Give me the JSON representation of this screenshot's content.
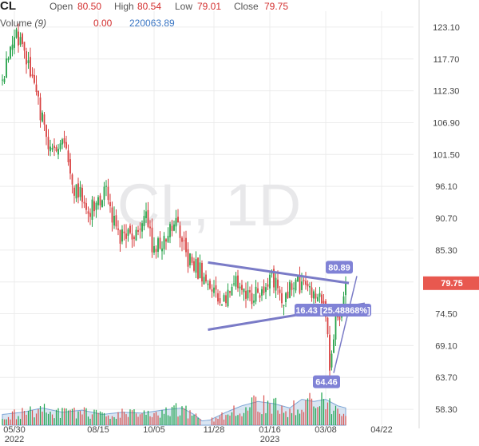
{
  "header": {
    "symbol": "CL",
    "open_label": "Open",
    "open_value": "80.50",
    "high_label": "High",
    "high_value": "80.54",
    "low_label": "Low",
    "low_value": "79.01",
    "close_label": "Close",
    "close_value": "79.75",
    "volume_label": "Volume",
    "volume_period": "(9)",
    "volume_change": "0.00",
    "volume_value": "220063.89"
  },
  "watermark": "CL, 1D",
  "chart_data": {
    "type": "candlestick",
    "symbol": "CL",
    "interval": "1D",
    "x_tick_labels": [
      "05/30",
      "08/15",
      "10/05",
      "11/28",
      "01/16",
      "03/08",
      "04/22"
    ],
    "x_tick_sublabels": [
      "2022",
      "",
      "",
      "",
      "2023",
      "",
      ""
    ],
    "y_tick_labels": [
      "123.10",
      "117.70",
      "112.30",
      "106.90",
      "101.50",
      "96.10",
      "90.70",
      "85.30",
      "79.90",
      "74.50",
      "69.10",
      "63.70",
      "58.30"
    ],
    "ylim": [
      55.6,
      125.8
    ],
    "last_price": "79.75",
    "grid": true,
    "price_anchors": [
      [
        0,
        114
      ],
      [
        6,
        122
      ],
      [
        10,
        121
      ],
      [
        13,
        117
      ],
      [
        18,
        110
      ],
      [
        24,
        102
      ],
      [
        30,
        104
      ],
      [
        36,
        96
      ],
      [
        44,
        92
      ],
      [
        52,
        95
      ],
      [
        58,
        88
      ],
      [
        66,
        87
      ],
      [
        72,
        91
      ],
      [
        76,
        85
      ],
      [
        82,
        88
      ],
      [
        88,
        90
      ],
      [
        92,
        84
      ],
      [
        98,
        82
      ],
      [
        104,
        80
      ],
      [
        110,
        76
      ],
      [
        118,
        80
      ],
      [
        126,
        77
      ],
      [
        134,
        81
      ],
      [
        140,
        77
      ],
      [
        146,
        80
      ],
      [
        152,
        79
      ],
      [
        158,
        77
      ],
      [
        162,
        75
      ],
      [
        164,
        66
      ],
      [
        167,
        73
      ],
      [
        170,
        75
      ],
      [
        172,
        79.75
      ]
    ],
    "volume_anchors": [
      [
        0,
        0.25
      ],
      [
        10,
        0.3
      ],
      [
        20,
        0.4
      ],
      [
        30,
        0.3
      ],
      [
        40,
        0.35
      ],
      [
        50,
        0.25
      ],
      [
        60,
        0.3
      ],
      [
        70,
        0.28
      ],
      [
        80,
        0.35
      ],
      [
        90,
        0.4
      ],
      [
        96,
        0.25
      ],
      [
        100,
        0.1
      ],
      [
        104,
        0.12
      ],
      [
        112,
        0.3
      ],
      [
        120,
        0.45
      ],
      [
        128,
        0.55
      ],
      [
        136,
        0.5
      ],
      [
        144,
        0.4
      ],
      [
        150,
        0.6
      ],
      [
        156,
        0.55
      ],
      [
        162,
        0.6
      ],
      [
        168,
        0.45
      ],
      [
        172,
        0.4
      ]
    ],
    "trendlines": [
      {
        "name": "upper",
        "points": [
          [
            99,
            83.2
          ],
          [
            164,
            79.7
          ]
        ]
      },
      {
        "name": "lower",
        "points": [
          [
            99,
            71.8
          ],
          [
            172,
            76.2
          ]
        ]
      },
      {
        "name": "measure",
        "points": [
          [
            162,
            64.46
          ],
          [
            168,
            80.89
          ]
        ]
      }
    ],
    "annotations": [
      {
        "text": "80.89",
        "value": 80.89
      },
      {
        "text": "16.43 [25.48868%]"
      },
      {
        "text": "64.46",
        "value": 64.46
      }
    ]
  }
}
